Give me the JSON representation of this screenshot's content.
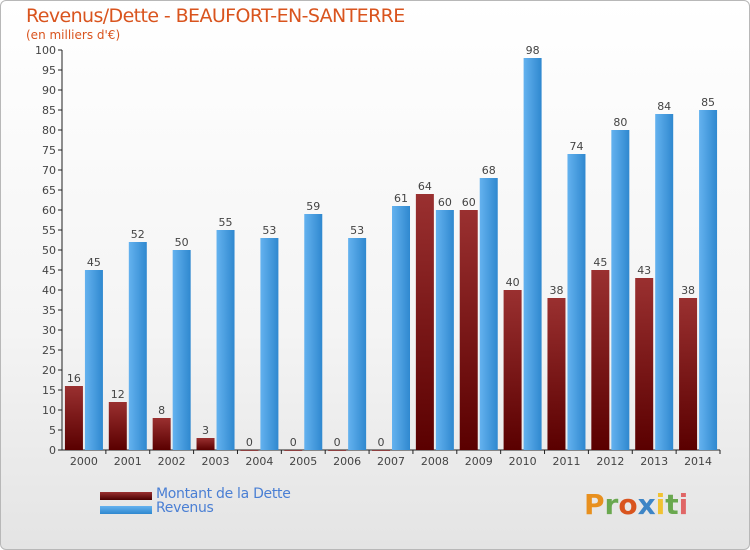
{
  "title": "Revenus/Dette - BEAUFORT-EN-SANTERRE",
  "subtitle": "(en milliers d'€)",
  "logo_text": "Proxiti",
  "colors": {
    "debt_top": "#9a3030",
    "debt_bottom": "#5a0000",
    "revenue_top": "#5aaaea",
    "revenue_bottom": "#2a86cc",
    "title": "#d9541e",
    "legend_text": "#4a7fd4"
  },
  "chart_data": {
    "type": "bar",
    "title": "Revenus/Dette - BEAUFORT-EN-SANTERRE",
    "ylabel": "(en milliers d'€)",
    "xlabel": "",
    "categories": [
      "2000",
      "2001",
      "2002",
      "2003",
      "2004",
      "2005",
      "2006",
      "2007",
      "2008",
      "2009",
      "2010",
      "2011",
      "2012",
      "2013",
      "2014"
    ],
    "series": [
      {
        "name": "Montant de la Dette",
        "values": [
          16,
          12,
          8,
          3,
          0,
          0,
          0,
          0,
          64,
          60,
          40,
          38,
          45,
          43,
          38
        ]
      },
      {
        "name": "Revenus",
        "values": [
          45,
          52,
          50,
          55,
          53,
          59,
          53,
          61,
          60,
          68,
          98,
          74,
          80,
          84,
          85
        ]
      }
    ],
    "ylim": [
      0,
      100
    ],
    "yticks": [
      0,
      5,
      10,
      15,
      20,
      25,
      30,
      35,
      40,
      45,
      50,
      55,
      60,
      65,
      70,
      75,
      80,
      85,
      90,
      95,
      100
    ],
    "grid": false,
    "legend_position": "bottom-left"
  }
}
